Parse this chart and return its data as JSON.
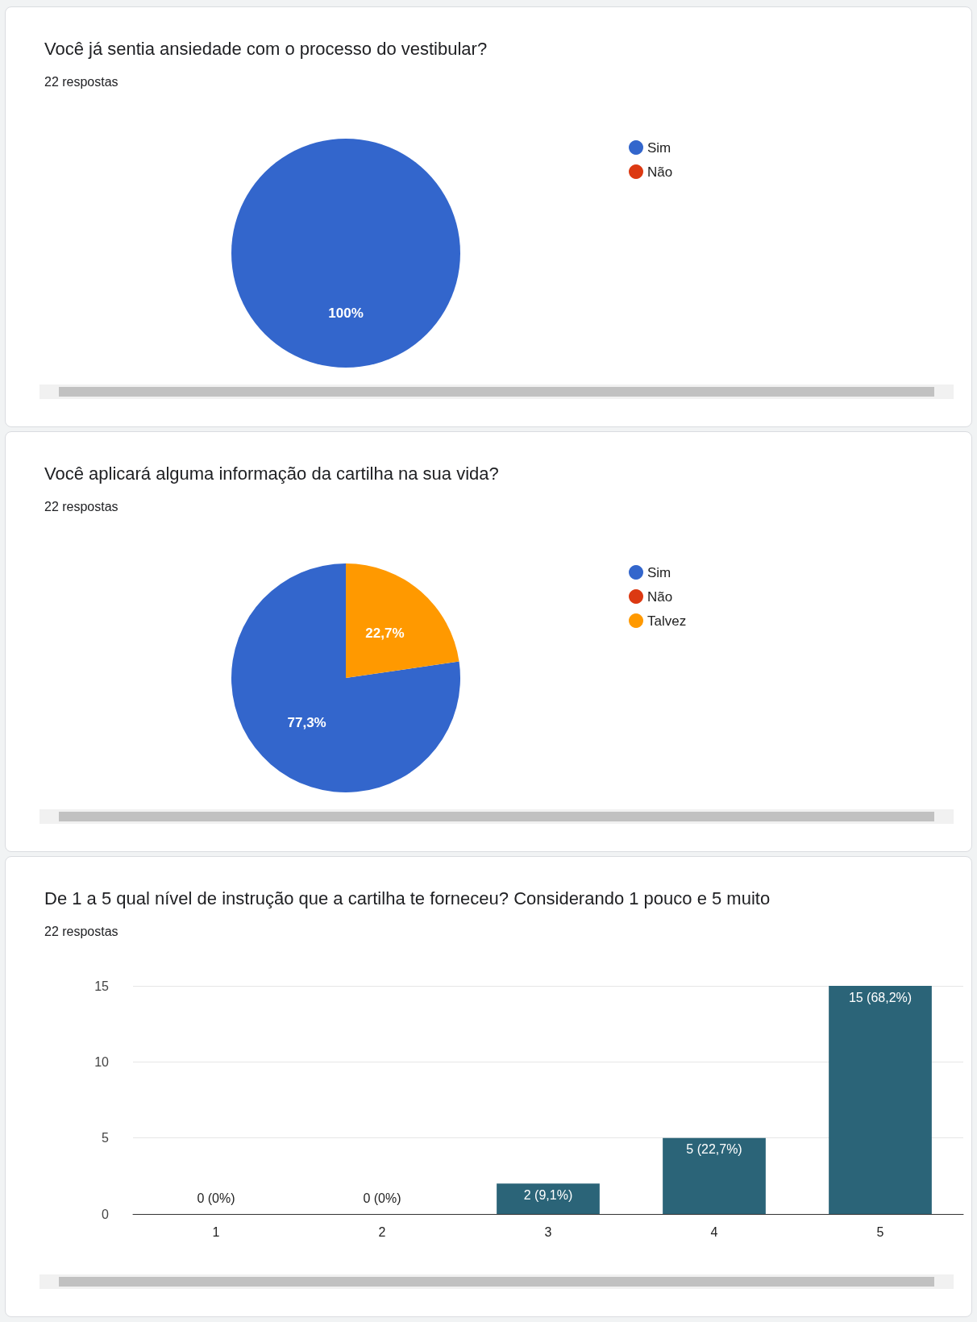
{
  "chart_data": [
    {
      "type": "pie",
      "title": "Você já sentia ansiedade com o processo do vestibular?",
      "subtitle": "22 respostas",
      "categories": [
        "Sim",
        "Não"
      ],
      "values": [
        100,
        0
      ],
      "colors": [
        "#3366cc",
        "#dc3912"
      ],
      "value_labels": [
        "100%",
        null
      ],
      "legend": "top right"
    },
    {
      "type": "pie",
      "title": "Você aplicará alguma informação da cartilha na sua vida?",
      "subtitle": "22 respostas",
      "categories": [
        "Sim",
        "Não",
        "Talvez"
      ],
      "values": [
        77.3,
        0,
        22.7
      ],
      "colors": [
        "#3366cc",
        "#dc3912",
        "#ff9900"
      ],
      "value_labels": [
        "77,3%",
        null,
        "22,7%"
      ],
      "legend": "top right"
    },
    {
      "type": "bar",
      "title": "De 1 a 5 qual nível de instrução que a cartilha te forneceu? Considerando 1 pouco e 5 muito",
      "subtitle": "22 respostas",
      "categories": [
        "1",
        "2",
        "3",
        "4",
        "5"
      ],
      "values": [
        0,
        0,
        2,
        5,
        15
      ],
      "color": "#2b6478",
      "value_labels": [
        "0 (0%)",
        "0 (0%)",
        "2 (9,1%)",
        "5 (22,7%)",
        "15 (68,2%)"
      ],
      "ylim": [
        0,
        15
      ],
      "yticks": [
        0,
        5,
        10,
        15
      ],
      "grid": "y"
    }
  ]
}
